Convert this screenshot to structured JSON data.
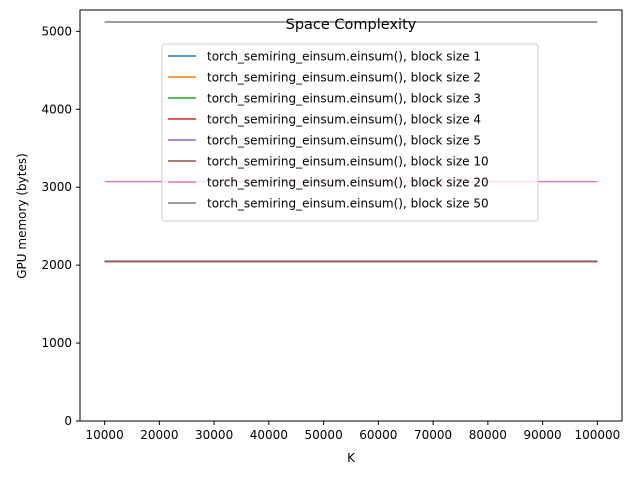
{
  "chart_data": {
    "type": "line",
    "title": "Space Complexity",
    "xlabel": "K",
    "ylabel": "GPU memory (bytes)",
    "x": [
      10000,
      20000,
      30000,
      40000,
      50000,
      60000,
      70000,
      80000,
      90000,
      100000
    ],
    "xlim": [
      5500,
      104500
    ],
    "ylim": [
      0,
      5274
    ],
    "xticks": [
      "10000",
      "20000",
      "30000",
      "40000",
      "50000",
      "60000",
      "70000",
      "80000",
      "90000",
      "100000"
    ],
    "yticks": [
      "0",
      "1000",
      "2000",
      "3000",
      "4000",
      "5000"
    ],
    "grid": false,
    "legend_position": "top-center",
    "series": [
      {
        "name": "torch_semiring_einsum.einsum(), block size 1",
        "color": "#1f77b4",
        "values": [
          2048,
          2048,
          2048,
          2048,
          2048,
          2048,
          2048,
          2048,
          2048,
          2048
        ]
      },
      {
        "name": "torch_semiring_einsum.einsum(), block size 2",
        "color": "#ff7f0e",
        "values": [
          2048,
          2048,
          2048,
          2048,
          2048,
          2048,
          2048,
          2048,
          2048,
          2048
        ]
      },
      {
        "name": "torch_semiring_einsum.einsum(), block size 3",
        "color": "#2ca02c",
        "values": [
          2048,
          2048,
          2048,
          2048,
          2048,
          2048,
          2048,
          2048,
          2048,
          2048
        ]
      },
      {
        "name": "torch_semiring_einsum.einsum(), block size 4",
        "color": "#d62728",
        "values": [
          2048,
          2048,
          2048,
          2048,
          2048,
          2048,
          2048,
          2048,
          2048,
          2048
        ]
      },
      {
        "name": "torch_semiring_einsum.einsum(), block size 5",
        "color": "#9467bd",
        "values": [
          2048,
          2048,
          2048,
          2048,
          2048,
          2048,
          2048,
          2048,
          2048,
          2048
        ]
      },
      {
        "name": "torch_semiring_einsum.einsum(), block size 10",
        "color": "#8c564b",
        "values": [
          2048,
          2048,
          2048,
          2048,
          2048,
          2048,
          2048,
          2048,
          2048,
          2048
        ]
      },
      {
        "name": "torch_semiring_einsum.einsum(), block size 20",
        "color": "#e377c2",
        "values": [
          3072,
          3072,
          3072,
          3072,
          3072,
          3072,
          3072,
          3072,
          3072,
          3072
        ]
      },
      {
        "name": "torch_semiring_einsum.einsum(), block size 50",
        "color": "#7f7f7f",
        "values": [
          5120,
          5120,
          5120,
          5120,
          5120,
          5120,
          5120,
          5120,
          5120,
          5120
        ]
      }
    ]
  }
}
